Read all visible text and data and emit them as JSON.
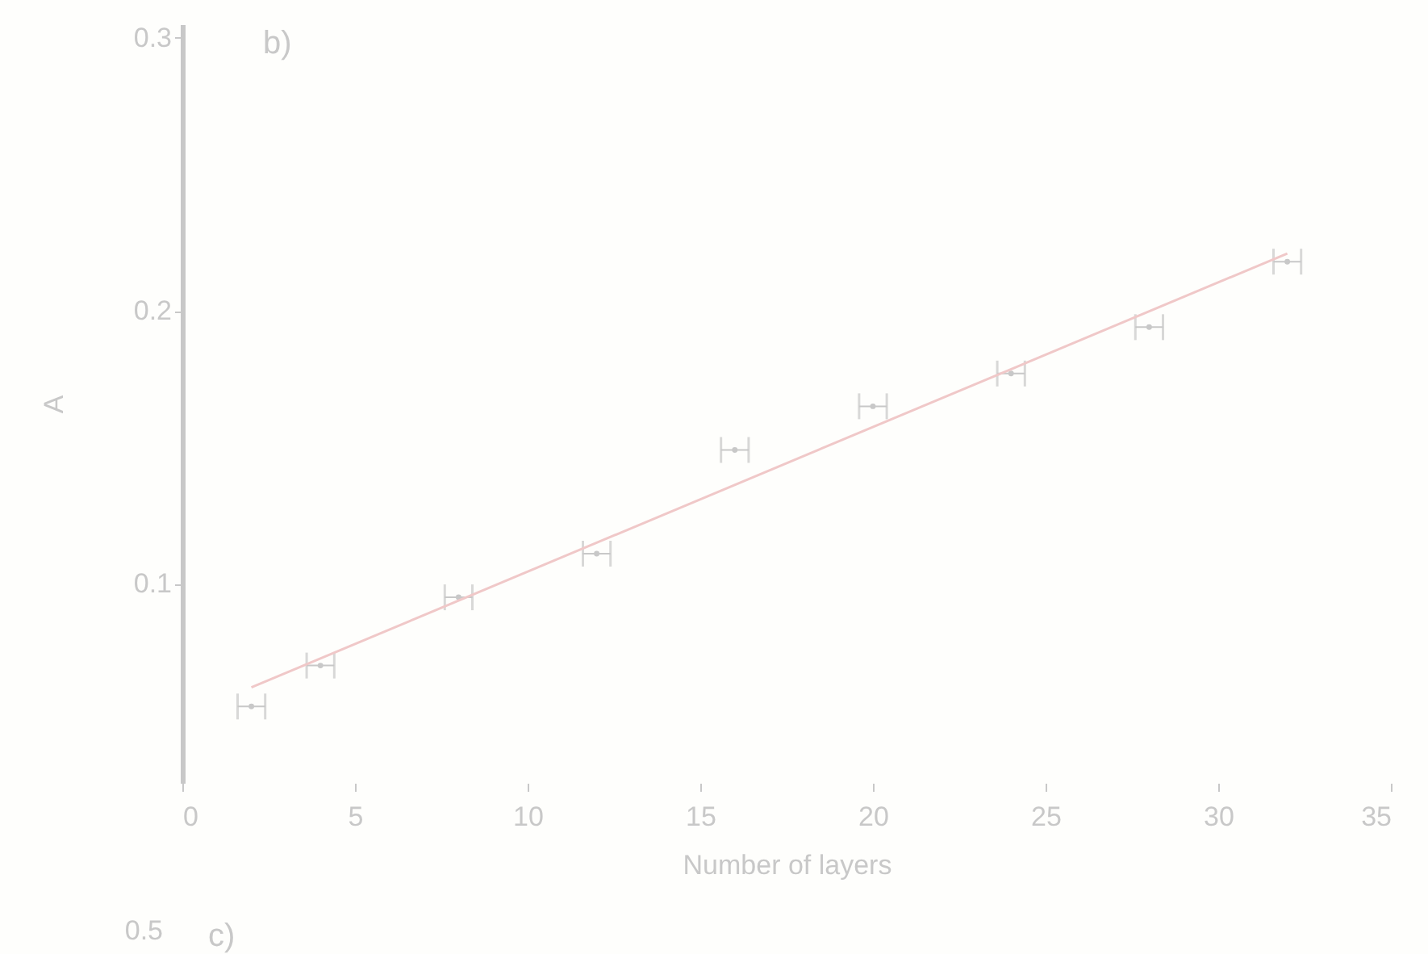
{
  "chart_data": {
    "type": "scatter",
    "xlabel": "Number of layers",
    "ylabel": "A",
    "annotations": [
      "b)",
      "0.5",
      "c)"
    ],
    "xlim": [
      0,
      35
    ],
    "xticks": [
      0,
      5,
      10,
      15,
      20,
      25,
      30,
      35
    ],
    "ylim": [
      0.027,
      0.305
    ],
    "yticks": [
      {
        "value": 0.1,
        "label": "0.1"
      },
      {
        "value": 0.2,
        "label": "0.2"
      },
      {
        "value": 0.3,
        "label": "0.3"
      }
    ],
    "grid": false,
    "series": [
      {
        "color": "#c8c8c8",
        "marker": "circle",
        "x": [
          2,
          4,
          8,
          12,
          16,
          20,
          24,
          28,
          32
        ],
        "values": [
          0.055,
          0.07,
          0.095,
          0.111,
          0.149,
          0.165,
          0.177,
          0.194,
          0.218
        ],
        "xerrors": [
          0.4,
          0.4,
          0.4,
          0.4,
          0.4,
          0.4,
          0.4,
          0.4,
          0.4
        ]
      },
      {
        "type": "line",
        "color": "#f0c8c8",
        "line_style": "solid",
        "x": [
          2,
          32
        ],
        "values": [
          0.062,
          0.221
        ]
      }
    ]
  }
}
